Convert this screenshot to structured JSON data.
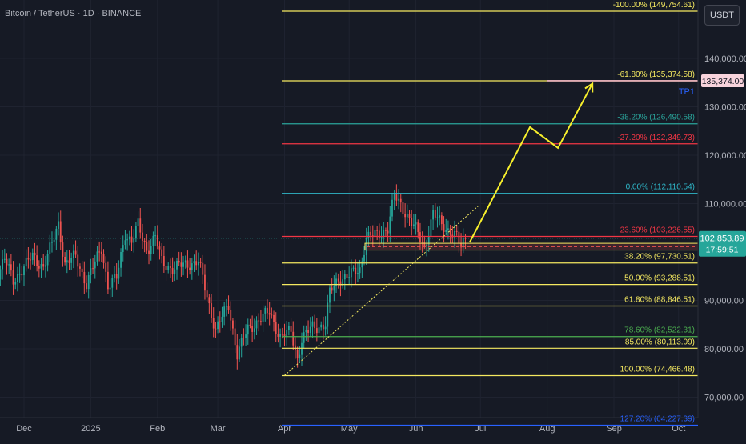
{
  "title": "Bitcoin / TetherUS · 1D · BINANCE",
  "currency_button": "USDT",
  "colors": {
    "background": "#161a25",
    "up_candle": "#26a69a",
    "down_candle": "#ef5350",
    "fib_yellow": "#f5e960",
    "fib_red": "#f23645",
    "fib_teal": "#2aa59b",
    "fib_cyan": "#2fb7c9",
    "fib_green": "#4caf50",
    "tp_blue": "#2962ff",
    "arrow": "#f7ef2c"
  },
  "chart_data": {
    "type": "candlestick",
    "title": "Bitcoin / TetherUS · 1D · BINANCE",
    "ylim": [
      67000,
      152000
    ],
    "y_ticks": [
      {
        "value": 140000,
        "label": "140,000.00"
      },
      {
        "value": 130000,
        "label": "130,000.00"
      },
      {
        "value": 120000,
        "label": "120,000.00"
      },
      {
        "value": 110000,
        "label": "110,000.00"
      },
      {
        "value": 90000,
        "label": "90,000.00"
      },
      {
        "value": 80000,
        "label": "80,000.00"
      },
      {
        "value": 70000,
        "label": "70,000.00"
      }
    ],
    "x_ticks": [
      "Dec",
      "2025",
      "Feb",
      "Mar",
      "Apr",
      "May",
      "Jun",
      "Jul",
      "Aug",
      "Sep",
      "Oct"
    ],
    "fib_levels": [
      {
        "label": "-100.00% (149,754.61)",
        "value": 149754.61,
        "color": "#f5e960"
      },
      {
        "label": "-61.80% (135,374.58)",
        "value": 135374.58,
        "color": "#f5e960"
      },
      {
        "label": "-38.20% (126,490.58)",
        "value": 126490.58,
        "color": "#2aa59b"
      },
      {
        "label": "-27.20% (122,349.73)",
        "value": 122349.73,
        "color": "#f23645"
      },
      {
        "label": "0.00% (112,110.54)",
        "value": 112110.54,
        "color": "#2fb7c9"
      },
      {
        "label": "23.60% (103,226.55)",
        "value": 103226.55,
        "color": "#f23645"
      },
      {
        "label": "38.20% (97,730.51)",
        "value": 97730.51,
        "color": "#f5e960"
      },
      {
        "label": "50.00% (93,288.51)",
        "value": 93288.51,
        "color": "#f5e960"
      },
      {
        "label": "61.80% (88,846.51)",
        "value": 88846.51,
        "color": "#f5e960"
      },
      {
        "label": "78.60% (82,522.31)",
        "value": 82522.31,
        "color": "#4caf50"
      },
      {
        "label": "85.00% (80,113.09)",
        "value": 80113.09,
        "color": "#f5e960"
      },
      {
        "label": "100.00% (74,466.48)",
        "value": 74466.48,
        "color": "#f5e960"
      },
      {
        "label": "127.20% (64,227.39)",
        "value": 64227.39,
        "color": "#2962ff"
      }
    ],
    "tp_label": "TP1",
    "tp_price_label": "135,374.00",
    "tp_value": 135374,
    "current_price": "102,853.89",
    "current_value": 102853.89,
    "countdown": "17:59:51",
    "support_zone": [
      100400,
      101800
    ],
    "projection_path": [
      {
        "date": "2025-06-26",
        "value": 102000
      },
      {
        "date": "2025-07-24",
        "value": 125800
      },
      {
        "date": "2025-08-06",
        "value": 121500
      },
      {
        "date": "2025-08-22",
        "value": 134800
      }
    ],
    "trendline": [
      {
        "date": "2025-04-01",
        "value": 74500
      },
      {
        "date": "2025-06-30",
        "value": 109500
      }
    ],
    "candle_closes": [
      {
        "date": "2024-11-18",
        "close": 95000
      },
      {
        "date": "2024-11-22",
        "close": 98500
      },
      {
        "date": "2024-11-26",
        "close": 94000
      },
      {
        "date": "2024-11-30",
        "close": 96500
      },
      {
        "date": "2024-12-05",
        "close": 99000
      },
      {
        "date": "2024-12-10",
        "close": 97000
      },
      {
        "date": "2024-12-14",
        "close": 101500
      },
      {
        "date": "2024-12-17",
        "close": 106000
      },
      {
        "date": "2024-12-20",
        "close": 97500
      },
      {
        "date": "2024-12-25",
        "close": 99000
      },
      {
        "date": "2024-12-30",
        "close": 93500
      },
      {
        "date": "2025-01-06",
        "close": 101000
      },
      {
        "date": "2025-01-09",
        "close": 93000
      },
      {
        "date": "2025-01-13",
        "close": 94500
      },
      {
        "date": "2025-01-17",
        "close": 104000
      },
      {
        "date": "2025-01-20",
        "close": 102000
      },
      {
        "date": "2025-01-23",
        "close": 105500
      },
      {
        "date": "2025-01-27",
        "close": 100500
      },
      {
        "date": "2025-01-31",
        "close": 103000
      },
      {
        "date": "2025-02-03",
        "close": 98000
      },
      {
        "date": "2025-02-08",
        "close": 96500
      },
      {
        "date": "2025-02-14",
        "close": 97500
      },
      {
        "date": "2025-02-20",
        "close": 98000
      },
      {
        "date": "2025-02-25",
        "close": 89000
      },
      {
        "date": "2025-02-28",
        "close": 84000
      },
      {
        "date": "2025-03-03",
        "close": 86500
      },
      {
        "date": "2025-03-06",
        "close": 89000
      },
      {
        "date": "2025-03-10",
        "close": 79000
      },
      {
        "date": "2025-03-15",
        "close": 84000
      },
      {
        "date": "2025-03-20",
        "close": 86000
      },
      {
        "date": "2025-03-25",
        "close": 87500
      },
      {
        "date": "2025-03-30",
        "close": 82500
      },
      {
        "date": "2025-04-04",
        "close": 83500
      },
      {
        "date": "2025-04-07",
        "close": 78000
      },
      {
        "date": "2025-04-09",
        "close": 82000
      },
      {
        "date": "2025-04-14",
        "close": 84500
      },
      {
        "date": "2025-04-20",
        "close": 85000
      },
      {
        "date": "2025-04-22",
        "close": 91500
      },
      {
        "date": "2025-04-26",
        "close": 94500
      },
      {
        "date": "2025-05-01",
        "close": 95000
      },
      {
        "date": "2025-05-06",
        "close": 96500
      },
      {
        "date": "2025-05-09",
        "close": 103000
      },
      {
        "date": "2025-05-14",
        "close": 103500
      },
      {
        "date": "2025-05-19",
        "close": 105000
      },
      {
        "date": "2025-05-22",
        "close": 111500
      },
      {
        "date": "2025-05-27",
        "close": 108500
      },
      {
        "date": "2025-06-01",
        "close": 104500
      },
      {
        "date": "2025-06-05",
        "close": 101000
      },
      {
        "date": "2025-06-09",
        "close": 108000
      },
      {
        "date": "2025-06-13",
        "close": 105500
      },
      {
        "date": "2025-06-17",
        "close": 104500
      },
      {
        "date": "2025-06-20",
        "close": 103000
      },
      {
        "date": "2025-06-22",
        "close": 100800
      },
      {
        "date": "2025-06-24",
        "close": 102853.89
      }
    ]
  }
}
